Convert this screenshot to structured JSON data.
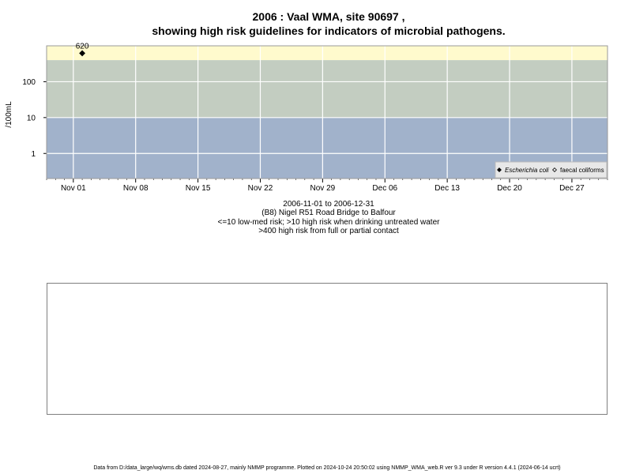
{
  "header": {
    "title_line1": "2006 : Vaal WMA, site 90697 ,",
    "title_line2": "showing high risk guidelines for indicators of microbial pathogens."
  },
  "chart_data": {
    "type": "scatter",
    "xlabel": "",
    "ylabel": "/100mL",
    "y_scale": "log10",
    "xlim": [
      "2006-10-29",
      "2006-12-31"
    ],
    "ylim": [
      0.2,
      1000
    ],
    "y_ticks": [
      1,
      10,
      100
    ],
    "y_tick_labels": [
      "1",
      "10",
      "100"
    ],
    "x_ticks": [
      "2006-11-01",
      "2006-11-08",
      "2006-11-15",
      "2006-11-22",
      "2006-11-29",
      "2006-12-06",
      "2006-12-13",
      "2006-12-20",
      "2006-12-27"
    ],
    "x_tick_labels": [
      "Nov 01",
      "Nov 08",
      "Nov 15",
      "Nov 22",
      "Nov 29",
      "Dec 06",
      "Dec 13",
      "Dec 20",
      "Dec 27"
    ],
    "grid": true,
    "bands": [
      {
        "from": 0.2,
        "to": 10,
        "color": "#a1b2cb"
      },
      {
        "from": 10,
        "to": 400,
        "color": "#c3cdc1"
      },
      {
        "from": 400,
        "to": 1000,
        "color": "#fffacd"
      }
    ],
    "series": [
      {
        "name": "Escherichia coli",
        "marker": "filled-diamond",
        "color": "#000000",
        "points": [
          {
            "x": "2006-11-02",
            "y": 620,
            "label": "620"
          }
        ]
      },
      {
        "name": "faecal coliforms",
        "marker": "open-diamond",
        "color": "#000000",
        "points": []
      }
    ],
    "legend_position": "bottom-right"
  },
  "captions": {
    "date_range": "2006-11-01 to 2006-12-31",
    "site_name": "(B8) Nigel R51 Road Bridge to Balfour",
    "risk_note_1": "<=10 low-med risk; >10 high risk when drinking untreated water",
    "risk_note_2": ">400 high risk from full or partial contact"
  },
  "footer": {
    "text": "Data from D:/data_large/wq/wms.db dated 2024-08-27, mainly NMMP programme. Plotted on 2024-10-24 20:50:02 using NMMP_WMA_web.R ver 9.3 under R version 4.4.1 (2024-06-14 ucrt)"
  }
}
